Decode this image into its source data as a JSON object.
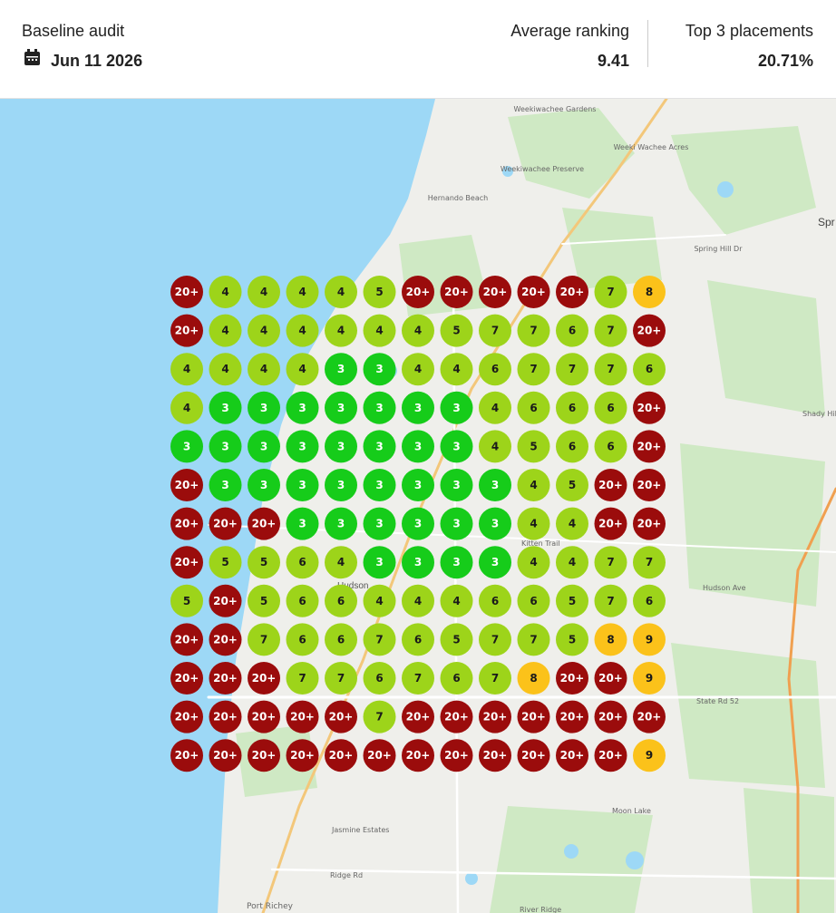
{
  "header": {
    "title": "Baseline audit",
    "date": "Jun 11 2026",
    "metrics": [
      {
        "label": "Average ranking",
        "value": "9.41"
      },
      {
        "label": "Top 3 placements",
        "value": "20.71%"
      }
    ]
  },
  "map": {
    "places": [
      "Weekiwachee Gardens",
      "Weeki Wachee Acres",
      "Weekiwachee Preserve",
      "Hernando Beach",
      "Spring Hill Dr",
      "Spr",
      "Shady Hil",
      "Hudson Ave",
      "Hudson",
      "Kitten Trail",
      "State Rd 52",
      "Moon Lake",
      "Jasmine Estates",
      "Ridge Rd",
      "Port Richey",
      "River Ridge"
    ]
  },
  "grid": {
    "rows": [
      [
        "20+",
        "4",
        "4",
        "4",
        "4",
        "5",
        "20+",
        "20+",
        "20+",
        "20+",
        "20+",
        "7",
        "8"
      ],
      [
        "20+",
        "4",
        "4",
        "4",
        "4",
        "4",
        "4",
        "5",
        "7",
        "7",
        "6",
        "7",
        "20+"
      ],
      [
        "4",
        "4",
        "4",
        "4",
        "3",
        "3",
        "4",
        "4",
        "6",
        "7",
        "7",
        "7",
        "6"
      ],
      [
        "4",
        "3",
        "3",
        "3",
        "3",
        "3",
        "3",
        "3",
        "4",
        "6",
        "6",
        "6",
        "20+"
      ],
      [
        "3",
        "3",
        "3",
        "3",
        "3",
        "3",
        "3",
        "3",
        "4",
        "5",
        "6",
        "6",
        "20+"
      ],
      [
        "20+",
        "3",
        "3",
        "3",
        "3",
        "3",
        "3",
        "3",
        "3",
        "4",
        "5",
        "20+",
        "20+"
      ],
      [
        "20+",
        "20+",
        "20+",
        "3",
        "3",
        "3",
        "3",
        "3",
        "3",
        "4",
        "4",
        "20+",
        "20+"
      ],
      [
        "20+",
        "5",
        "5",
        "6",
        "4",
        "3",
        "3",
        "3",
        "3",
        "4",
        "4",
        "7",
        "7"
      ],
      [
        "5",
        "20+",
        "5",
        "6",
        "6",
        "4",
        "4",
        "4",
        "6",
        "6",
        "5",
        "7",
        "6"
      ],
      [
        "20+",
        "20+",
        "7",
        "6",
        "6",
        "7",
        "6",
        "5",
        "7",
        "7",
        "5",
        "8",
        "9"
      ],
      [
        "20+",
        "20+",
        "20+",
        "7",
        "7",
        "6",
        "7",
        "6",
        "7",
        "8",
        "20+",
        "20+",
        "9"
      ],
      [
        "20+",
        "20+",
        "20+",
        "20+",
        "20+",
        "7",
        "20+",
        "20+",
        "20+",
        "20+",
        "20+",
        "20+",
        "20+"
      ],
      [
        "20+",
        "20+",
        "20+",
        "20+",
        "20+",
        "20+",
        "20+",
        "20+",
        "20+",
        "20+",
        "20+",
        "20+",
        "9"
      ]
    ]
  }
}
